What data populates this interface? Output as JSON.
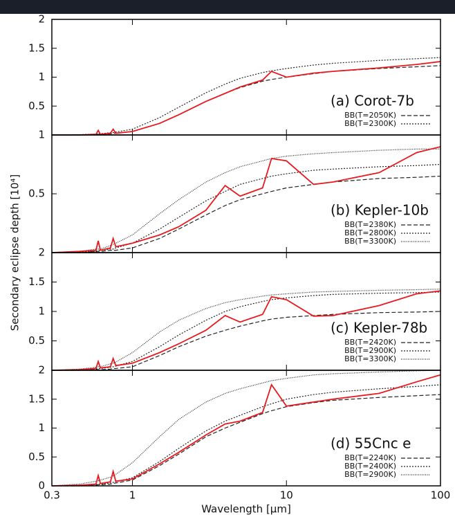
{
  "y_label": "Secondary eclipse depth [10⁴]",
  "chart_data": [
    {
      "type": "line",
      "label": "(a) Corot-7b",
      "xscale": "log",
      "xlim": [
        0.3,
        100
      ],
      "ylim": [
        0,
        2
      ],
      "yticks": [
        0.5,
        1,
        1.5,
        2
      ],
      "x": [
        0.3,
        0.45,
        0.58,
        0.6,
        0.62,
        0.72,
        0.75,
        0.78,
        1,
        1.5,
        2,
        3,
        4,
        5,
        7,
        8,
        10,
        15,
        20,
        40,
        70,
        100
      ],
      "series": [
        {
          "name": "BB(T=2050K)",
          "color": "#222222",
          "style": "dashed",
          "values": [
            0,
            0,
            0.01,
            0.01,
            0.01,
            0.02,
            0.03,
            0.03,
            0.06,
            0.2,
            0.35,
            0.58,
            0.72,
            0.82,
            0.93,
            0.96,
            1.0,
            1.06,
            1.1,
            1.15,
            1.18,
            1.2
          ]
        },
        {
          "name": "BB(T=2300K)",
          "color": "#222222",
          "style": "dotted",
          "values": [
            0,
            0.005,
            0.015,
            0.02,
            0.02,
            0.04,
            0.04,
            0.05,
            0.1,
            0.3,
            0.48,
            0.73,
            0.88,
            0.98,
            1.08,
            1.11,
            1.15,
            1.21,
            1.24,
            1.29,
            1.32,
            1.34
          ]
        },
        {
          "color": "#e8191d",
          "style": "solid",
          "values": [
            0,
            0,
            0.01,
            0.08,
            0.01,
            0.03,
            0.1,
            0.03,
            0.06,
            0.2,
            0.35,
            0.58,
            0.72,
            0.83,
            0.95,
            1.1,
            1.0,
            1.07,
            1.1,
            1.16,
            1.22,
            1.27
          ]
        }
      ]
    },
    {
      "type": "line",
      "label": "(b) Kepler-10b",
      "xscale": "log",
      "xlim": [
        0.3,
        100
      ],
      "ylim": [
        0,
        1
      ],
      "yticks": [
        0.5,
        1
      ],
      "x": [
        0.3,
        0.45,
        0.58,
        0.6,
        0.62,
        0.72,
        0.75,
        0.78,
        1,
        1.5,
        2,
        3,
        4,
        5,
        7,
        8,
        10,
        15,
        20,
        40,
        70,
        100
      ],
      "series": [
        {
          "name": "BB(T=2380K)",
          "color": "#222222",
          "style": "dashed",
          "values": [
            0,
            0,
            0.01,
            0.01,
            0.01,
            0.02,
            0.02,
            0.02,
            0.04,
            0.12,
            0.2,
            0.32,
            0.4,
            0.45,
            0.5,
            0.52,
            0.55,
            0.58,
            0.6,
            0.63,
            0.64,
            0.65
          ]
        },
        {
          "name": "BB(T=2800K)",
          "color": "#222222",
          "style": "dotted",
          "values": [
            0,
            0.005,
            0.01,
            0.02,
            0.02,
            0.03,
            0.03,
            0.04,
            0.08,
            0.2,
            0.3,
            0.44,
            0.52,
            0.58,
            0.63,
            0.65,
            0.67,
            0.7,
            0.71,
            0.73,
            0.74,
            0.75
          ]
        },
        {
          "name": "BB(T=3300K)",
          "color": "#222222",
          "style": "fine",
          "values": [
            0,
            0.01,
            0.03,
            0.03,
            0.03,
            0.06,
            0.07,
            0.08,
            0.15,
            0.33,
            0.45,
            0.6,
            0.68,
            0.73,
            0.78,
            0.8,
            0.82,
            0.84,
            0.85,
            0.87,
            0.88,
            0.88
          ]
        },
        {
          "color": "#e8191d",
          "style": "solid",
          "values": [
            0,
            0.01,
            0.02,
            0.1,
            0.02,
            0.04,
            0.12,
            0.05,
            0.08,
            0.15,
            0.22,
            0.36,
            0.57,
            0.48,
            0.55,
            0.8,
            0.78,
            0.58,
            0.6,
            0.68,
            0.85,
            0.9
          ]
        }
      ]
    },
    {
      "type": "line",
      "label": "(c) Kepler-78b",
      "xscale": "log",
      "xlim": [
        0.3,
        100
      ],
      "ylim": [
        0,
        2
      ],
      "yticks": [
        0.5,
        1,
        1.5,
        2
      ],
      "x": [
        0.3,
        0.45,
        0.58,
        0.6,
        0.62,
        0.72,
        0.75,
        0.78,
        1,
        1.5,
        2,
        3,
        4,
        5,
        7,
        8,
        10,
        15,
        20,
        40,
        70,
        100
      ],
      "series": [
        {
          "name": "BB(T=2420K)",
          "color": "#222222",
          "style": "dashed",
          "values": [
            0,
            0,
            0.01,
            0.01,
            0.01,
            0.02,
            0.03,
            0.03,
            0.06,
            0.25,
            0.4,
            0.58,
            0.68,
            0.75,
            0.84,
            0.87,
            0.9,
            0.93,
            0.95,
            0.98,
            0.99,
            1.0
          ]
        },
        {
          "name": "BB(T=2900K)",
          "color": "#222222",
          "style": "dotted",
          "values": [
            0,
            0.01,
            0.02,
            0.03,
            0.03,
            0.05,
            0.06,
            0.07,
            0.15,
            0.4,
            0.6,
            0.85,
            1.0,
            1.08,
            1.17,
            1.2,
            1.23,
            1.27,
            1.29,
            1.31,
            1.32,
            1.33
          ]
        },
        {
          "name": "BB(T=3300K)",
          "color": "#222222",
          "style": "fine",
          "values": [
            0,
            0.02,
            0.05,
            0.06,
            0.06,
            0.11,
            0.12,
            0.14,
            0.3,
            0.65,
            0.85,
            1.05,
            1.15,
            1.2,
            1.26,
            1.28,
            1.3,
            1.33,
            1.34,
            1.36,
            1.37,
            1.38
          ]
        },
        {
          "color": "#e8191d",
          "style": "solid",
          "values": [
            0,
            0.01,
            0.03,
            0.15,
            0.04,
            0.06,
            0.2,
            0.08,
            0.12,
            0.3,
            0.45,
            0.68,
            0.93,
            0.82,
            0.95,
            1.25,
            1.2,
            0.92,
            0.93,
            1.1,
            1.3,
            1.35
          ]
        }
      ]
    },
    {
      "type": "line",
      "label": "(d) 55Cnc e",
      "xscale": "log",
      "xlim": [
        0.3,
        100
      ],
      "xticks": [
        0.3,
        1,
        10,
        100
      ],
      "x_label": "Wavelength [μm]",
      "ylim": [
        0,
        2
      ],
      "yticks": [
        0,
        0.5,
        1,
        1.5,
        2
      ],
      "x": [
        0.3,
        0.45,
        0.58,
        0.6,
        0.62,
        0.72,
        0.75,
        0.78,
        1,
        1.5,
        2,
        3,
        4,
        5,
        7,
        8,
        10,
        15,
        20,
        40,
        70,
        100
      ],
      "series": [
        {
          "name": "BB(T=2240K)",
          "color": "#222222",
          "style": "dashed",
          "values": [
            0,
            0,
            0.01,
            0.02,
            0.02,
            0.03,
            0.04,
            0.05,
            0.1,
            0.35,
            0.55,
            0.85,
            1.0,
            1.1,
            1.25,
            1.3,
            1.37,
            1.44,
            1.48,
            1.53,
            1.56,
            1.58
          ]
        },
        {
          "name": "BB(T=2400K)",
          "color": "#222222",
          "style": "dotted",
          "values": [
            0,
            0.01,
            0.02,
            0.03,
            0.03,
            0.05,
            0.06,
            0.07,
            0.14,
            0.42,
            0.65,
            0.95,
            1.12,
            1.22,
            1.37,
            1.42,
            1.5,
            1.58,
            1.62,
            1.68,
            1.72,
            1.75
          ]
        },
        {
          "name": "BB(T=2900K)",
          "color": "#222222",
          "style": "fine",
          "values": [
            0,
            0.03,
            0.08,
            0.09,
            0.1,
            0.15,
            0.17,
            0.2,
            0.4,
            0.85,
            1.15,
            1.45,
            1.6,
            1.68,
            1.78,
            1.82,
            1.86,
            1.92,
            1.94,
            1.97,
            1.99,
            2.0
          ]
        },
        {
          "color": "#e8191d",
          "style": "solid",
          "values": [
            0,
            0.01,
            0.03,
            0.18,
            0.04,
            0.07,
            0.25,
            0.08,
            0.12,
            0.38,
            0.58,
            0.88,
            1.07,
            1.12,
            1.27,
            1.75,
            1.38,
            1.45,
            1.5,
            1.6,
            1.8,
            1.92
          ]
        }
      ]
    }
  ]
}
